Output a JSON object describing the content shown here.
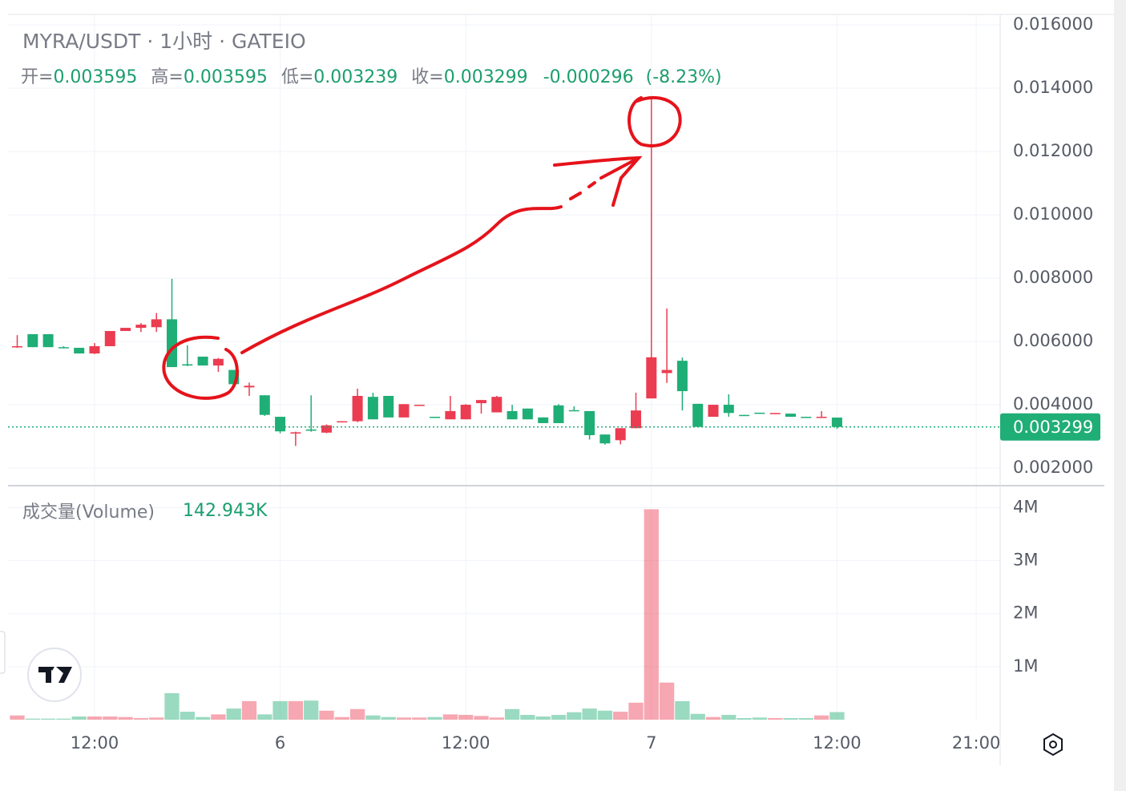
{
  "chart_data": {
    "type": "candlestick",
    "title": "MYRA/USDT · 1小时 · GATEIO",
    "legend": {
      "open_label": "开=",
      "high_label": "高=",
      "low_label": "低=",
      "close_label": "收=",
      "change": "-0.000296",
      "change_pct": "(-8.23%)"
    },
    "categories": [
      null,
      null,
      null,
      null,
      null,
      "12:00",
      null,
      null,
      null,
      null,
      null,
      null,
      null,
      null,
      null,
      null,
      null,
      "6",
      null,
      null,
      null,
      null,
      null,
      null,
      null,
      null,
      null,
      null,
      null,
      "12:00",
      null,
      null,
      null,
      null,
      null,
      null,
      null,
      null,
      null,
      null,
      null,
      "7",
      null,
      null,
      null,
      null,
      null,
      null,
      null,
      null,
      null,
      null,
      null,
      "12:00",
      null,
      null,
      null,
      null,
      null,
      null,
      null,
      null,
      "21:00"
    ],
    "open": [
      0.00582,
      0.00623,
      0.00623,
      0.00582,
      0.0058,
      0.00562,
      0.00585,
      0.00633,
      0.00643,
      0.00645,
      0.0067,
      0.00528,
      0.00552,
      0.00524,
      0.0051,
      0.00455,
      0.0043,
      0.00362,
      0.0031,
      0.00322,
      0.00312,
      0.00345,
      0.00348,
      0.00425,
      0.00428,
      0.0036,
      0.00398,
      0.00362,
      0.00354,
      0.00354,
      0.00405,
      0.00376,
      0.0038,
      0.00388,
      0.0036,
      0.00398,
      0.00383,
      0.0038,
      0.00306,
      0.00288,
      0.00326,
      0.0042,
      0.005,
      0.00539,
      0.00403,
      0.00362,
      0.004,
      0.00368,
      0.00375,
      0.00372,
      0.00372,
      0.00362,
      0.00361,
      0.003595,
      null,
      null,
      null,
      null,
      null,
      null,
      null,
      null,
      null
    ],
    "high": [
      0.0062,
      0.00623,
      0.00623,
      0.00585,
      0.0058,
      0.00595,
      0.00633,
      0.00643,
      0.00658,
      0.0069,
      0.00798,
      0.00588,
      0.00552,
      0.00548,
      0.0051,
      0.0047,
      0.0043,
      0.00362,
      0.00315,
      0.0043,
      0.00338,
      0.00348,
      0.00451,
      0.00438,
      0.00428,
      0.00402,
      0.004,
      0.00362,
      0.00428,
      0.00402,
      0.00415,
      0.00428,
      0.004,
      0.00388,
      0.0036,
      0.00402,
      0.00395,
      0.0038,
      0.00306,
      0.00326,
      0.00438,
      0.01375,
      0.00704,
      0.00549,
      0.00403,
      0.004,
      0.00433,
      0.00368,
      0.00375,
      0.00374,
      0.00372,
      0.00362,
      0.0038,
      0.003595,
      null,
      null,
      null,
      null,
      null,
      null,
      null,
      null,
      null
    ],
    "low": [
      0.0058,
      0.00582,
      0.00582,
      0.0058,
      0.00562,
      0.0056,
      0.00585,
      0.00633,
      0.0063,
      0.0063,
      0.00519,
      0.00522,
      0.00524,
      0.00504,
      0.0046,
      0.00428,
      0.00365,
      0.0031,
      0.0027,
      0.00315,
      0.0031,
      0.00345,
      0.00345,
      0.00354,
      0.0036,
      0.0036,
      0.00398,
      0.0036,
      0.00354,
      0.00354,
      0.00372,
      0.00376,
      0.00354,
      0.00354,
      0.00342,
      0.00342,
      0.00382,
      0.0029,
      0.00274,
      0.00275,
      0.00326,
      0.0042,
      0.00469,
      0.00382,
      0.0033,
      0.00362,
      0.00362,
      0.00367,
      0.00374,
      0.00372,
      0.00362,
      0.00361,
      0.00361,
      0.003239,
      null,
      null,
      null,
      null,
      null,
      null,
      null,
      null,
      null
    ],
    "close": [
      0.00585,
      0.00582,
      0.00582,
      0.0058,
      0.00562,
      0.00585,
      0.00633,
      0.00643,
      0.00653,
      0.0067,
      0.00519,
      0.00524,
      0.00524,
      0.00545,
      0.00465,
      0.0046,
      0.00368,
      0.00316,
      0.00313,
      0.00318,
      0.00335,
      0.00348,
      0.00428,
      0.00354,
      0.0036,
      0.00402,
      0.004,
      0.0036,
      0.0038,
      0.004,
      0.00415,
      0.00425,
      0.00354,
      0.00354,
      0.00342,
      0.00342,
      0.00382,
      0.00304,
      0.00278,
      0.00326,
      0.00382,
      0.0055,
      0.0051,
      0.00443,
      0.0033,
      0.004,
      0.00374,
      0.00367,
      0.00374,
      0.00374,
      0.00362,
      0.00361,
      0.00362,
      0.003299,
      null,
      null,
      null,
      null,
      null,
      null,
      null,
      null,
      null
    ],
    "up_color": "#eb3c51",
    "down_color": "#1fae76",
    "ylim": [
      0.00147,
      0.01633
    ],
    "yticks": [
      {
        "value": 0.002,
        "label": "0.002000"
      },
      {
        "value": 0.004,
        "label": "0.004000"
      },
      {
        "value": 0.006,
        "label": "0.006000"
      },
      {
        "value": 0.008,
        "label": "0.008000"
      },
      {
        "value": 0.01,
        "label": "0.010000"
      },
      {
        "value": 0.012,
        "label": "0.012000"
      },
      {
        "value": 0.014,
        "label": "0.014000"
      },
      {
        "value": 0.016,
        "label": "0.016000"
      }
    ],
    "grid": true,
    "volume": {
      "name": "成交量(Volume)",
      "last_label": "142.943K",
      "values": [
        80000,
        20000,
        20000,
        20000,
        60000,
        60000,
        60000,
        50000,
        30000,
        40000,
        500000,
        150000,
        50000,
        100000,
        210000,
        350000,
        100000,
        350000,
        350000,
        360000,
        170000,
        50000,
        200000,
        80000,
        50000,
        40000,
        40000,
        50000,
        100000,
        90000,
        70000,
        40000,
        200000,
        90000,
        60000,
        90000,
        140000,
        210000,
        170000,
        150000,
        320000,
        3970000,
        700000,
        350000,
        110000,
        50000,
        90000,
        30000,
        40000,
        30000,
        30000,
        30000,
        80000,
        142943,
        null,
        null,
        null,
        null,
        null,
        null,
        null,
        null,
        null
      ],
      "ylim": [
        0,
        4400000
      ],
      "yticks": [
        {
          "value": 1000000,
          "label": "1M"
        },
        {
          "value": 2000000,
          "label": "2M"
        },
        {
          "value": 3000000,
          "label": "3M"
        },
        {
          "value": 4000000,
          "label": "4M"
        }
      ]
    }
  }
}
